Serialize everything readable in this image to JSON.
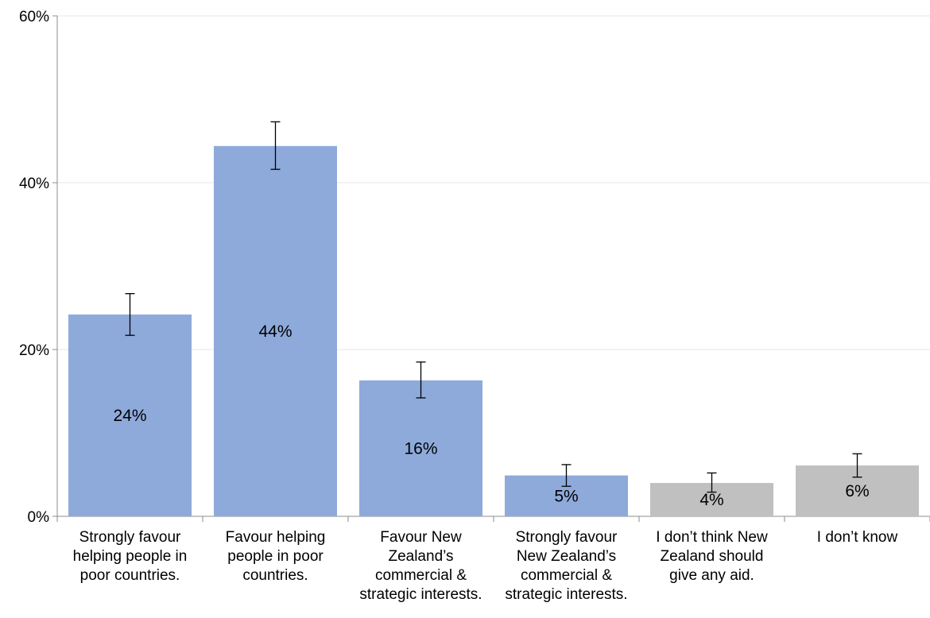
{
  "chart_data": {
    "type": "bar",
    "title": "",
    "xlabel": "",
    "ylabel": "",
    "ylim": [
      0,
      60
    ],
    "grid": true,
    "legend": "none",
    "y_ticks": [
      "0%",
      "20%",
      "40%",
      "60%"
    ],
    "y_tick_values": [
      0,
      20,
      40,
      60
    ],
    "categories": [
      [
        "Strongly favour",
        "helping people in",
        "poor countries."
      ],
      [
        "Favour helping",
        "people in poor",
        "countries."
      ],
      [
        "Favour New",
        "Zealand’s",
        "commercial &",
        "strategic interests."
      ],
      [
        "Strongly favour",
        "New Zealand’s",
        "commercial &",
        "strategic interests."
      ],
      [
        "I don’t think New",
        "Zealand should",
        "give any aid."
      ],
      [
        "I don’t know"
      ]
    ],
    "values": [
      24.2,
      44.4,
      16.3,
      4.9,
      4.0,
      6.1
    ],
    "data_labels": [
      "24%",
      "44%",
      "16%",
      "5%",
      "4%",
      "6%"
    ],
    "error_bars": [
      {
        "low": 21.7,
        "high": 26.7
      },
      {
        "low": 41.6,
        "high": 47.3
      },
      {
        "low": 14.2,
        "high": 18.5
      },
      {
        "low": 3.6,
        "high": 6.2
      },
      {
        "low": 2.9,
        "high": 5.2
      },
      {
        "low": 4.7,
        "high": 7.5
      }
    ],
    "colors": [
      "#8eaadb",
      "#8eaadb",
      "#8eaadb",
      "#8eaadb",
      "#c0c0c0",
      "#c0c0c0"
    ]
  }
}
